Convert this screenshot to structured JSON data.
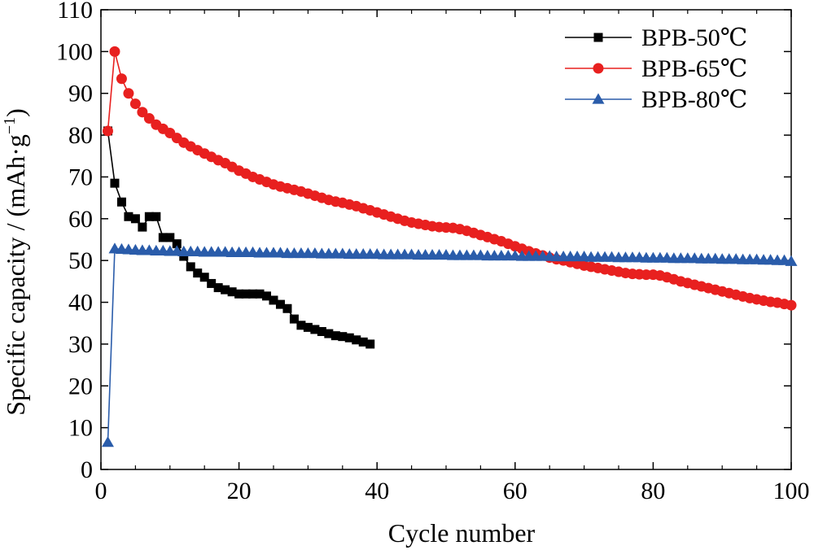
{
  "chart_data": {
    "type": "line",
    "xlabel": "Cycle number",
    "ylabel": "Specific capacity / (mAh·g",
    "ylabel_sup": "−1",
    "ylabel_close": ")",
    "xlim": [
      0,
      100
    ],
    "ylim": [
      0,
      110
    ],
    "xticks": [
      0,
      20,
      40,
      60,
      80,
      100
    ],
    "yticks": [
      0,
      10,
      20,
      30,
      40,
      50,
      60,
      70,
      80,
      90,
      100,
      110
    ],
    "grid": false,
    "legend_position": "top-right",
    "series": [
      {
        "name": "BPB-50℃",
        "color": "#000000",
        "marker": "square",
        "x": [
          1,
          2,
          3,
          4,
          5,
          6,
          7,
          8,
          9,
          10,
          11,
          12,
          13,
          14,
          15,
          16,
          17,
          18,
          19,
          20,
          21,
          22,
          23,
          24,
          25,
          26,
          27,
          28,
          29,
          30,
          31,
          32,
          33,
          34,
          35,
          36,
          37,
          38,
          39
        ],
        "y": [
          81,
          68.5,
          64,
          60.5,
          60,
          58,
          60.5,
          60.5,
          55.5,
          55.5,
          54,
          51,
          48.5,
          47,
          46,
          44.5,
          43.5,
          43,
          42.5,
          42,
          42,
          42,
          42,
          41.5,
          40.5,
          39.5,
          38.5,
          36,
          34.5,
          34,
          33.5,
          33,
          32.5,
          32,
          31.8,
          31.5,
          31,
          30.5,
          30
        ]
      },
      {
        "name": "BPB-65℃",
        "color": "#e8201f",
        "marker": "circle",
        "x": [
          1,
          2,
          3,
          4,
          5,
          6,
          7,
          8,
          9,
          10,
          11,
          12,
          13,
          14,
          15,
          16,
          17,
          18,
          19,
          20,
          21,
          22,
          23,
          24,
          25,
          26,
          27,
          28,
          29,
          30,
          31,
          32,
          33,
          34,
          35,
          36,
          37,
          38,
          39,
          40,
          41,
          42,
          43,
          44,
          45,
          46,
          47,
          48,
          49,
          50,
          51,
          52,
          53,
          54,
          55,
          56,
          57,
          58,
          59,
          60,
          61,
          62,
          63,
          64,
          65,
          66,
          67,
          68,
          69,
          70,
          71,
          72,
          73,
          74,
          75,
          76,
          77,
          78,
          79,
          80,
          81,
          82,
          83,
          84,
          85,
          86,
          87,
          88,
          89,
          90,
          91,
          92,
          93,
          94,
          95,
          96,
          97,
          98,
          99,
          100
        ],
        "y": [
          81,
          100,
          93.5,
          90,
          87.5,
          85.5,
          84,
          82.5,
          81.5,
          80.5,
          79.3,
          78.2,
          77.3,
          76.4,
          75.6,
          74.8,
          74,
          73.3,
          72.4,
          71.5,
          70.8,
          70,
          69.4,
          68.8,
          68.2,
          67.7,
          67.3,
          66.9,
          66.5,
          66,
          65.5,
          65,
          64.5,
          64.1,
          63.8,
          63.4,
          63,
          62.5,
          62,
          61.5,
          61,
          60.5,
          60,
          59.5,
          59.1,
          58.8,
          58.5,
          58.2,
          58,
          57.9,
          57.8,
          57.5,
          57.1,
          56.6,
          56.1,
          55.6,
          55.1,
          54.6,
          54,
          53.4,
          52.8,
          52.2,
          51.7,
          51.2,
          50.7,
          50.3,
          50,
          49.6,
          49.2,
          48.8,
          48.5,
          48.2,
          47.9,
          47.6,
          47.3,
          47,
          46.8,
          46.7,
          46.6,
          46.6,
          46.4,
          46,
          45.5,
          45,
          44.6,
          44.2,
          43.8,
          43.4,
          43,
          42.6,
          42.2,
          41.8,
          41.4,
          41,
          40.7,
          40.4,
          40.1,
          39.9,
          39.6,
          39.3
        ]
      },
      {
        "name": "BPB-80℃",
        "color": "#2a5caa",
        "marker": "triangle",
        "x": [
          1,
          2,
          3,
          4,
          5,
          6,
          7,
          8,
          9,
          10,
          11,
          12,
          13,
          14,
          15,
          16,
          17,
          18,
          19,
          20,
          21,
          22,
          23,
          24,
          25,
          26,
          27,
          28,
          29,
          30,
          31,
          32,
          33,
          34,
          35,
          36,
          37,
          38,
          39,
          40,
          41,
          42,
          43,
          44,
          45,
          46,
          47,
          48,
          49,
          50,
          51,
          52,
          53,
          54,
          55,
          56,
          57,
          58,
          59,
          60,
          61,
          62,
          63,
          64,
          65,
          66,
          67,
          68,
          69,
          70,
          71,
          72,
          73,
          74,
          75,
          76,
          77,
          78,
          79,
          80,
          81,
          82,
          83,
          84,
          85,
          86,
          87,
          88,
          89,
          90,
          91,
          92,
          93,
          94,
          95,
          96,
          97,
          98,
          99,
          100
        ],
        "y": [
          6.5,
          52.8,
          52.7,
          52.6,
          52.5,
          52.4,
          52.4,
          52.3,
          52.3,
          52.2,
          52.2,
          52.1,
          52.1,
          52.1,
          52,
          52,
          52,
          52,
          51.9,
          51.9,
          51.9,
          51.9,
          51.8,
          51.8,
          51.8,
          51.8,
          51.7,
          51.7,
          51.7,
          51.7,
          51.7,
          51.6,
          51.6,
          51.6,
          51.6,
          51.5,
          51.5,
          51.5,
          51.5,
          51.5,
          51.4,
          51.4,
          51.4,
          51.4,
          51.4,
          51.3,
          51.3,
          51.3,
          51.3,
          51.3,
          51.2,
          51.2,
          51.2,
          51.2,
          51.2,
          51.1,
          51.1,
          51.1,
          51.1,
          51.1,
          51,
          51,
          51,
          51,
          51,
          50.9,
          50.9,
          50.9,
          50.9,
          50.9,
          50.8,
          50.8,
          50.8,
          50.8,
          50.7,
          50.7,
          50.7,
          50.7,
          50.6,
          50.6,
          50.6,
          50.6,
          50.5,
          50.5,
          50.5,
          50.5,
          50.4,
          50.4,
          50.4,
          50.3,
          50.3,
          50.3,
          50.2,
          50.2,
          50.2,
          50.1,
          50.1,
          50,
          50,
          49.8
        ]
      }
    ]
  }
}
